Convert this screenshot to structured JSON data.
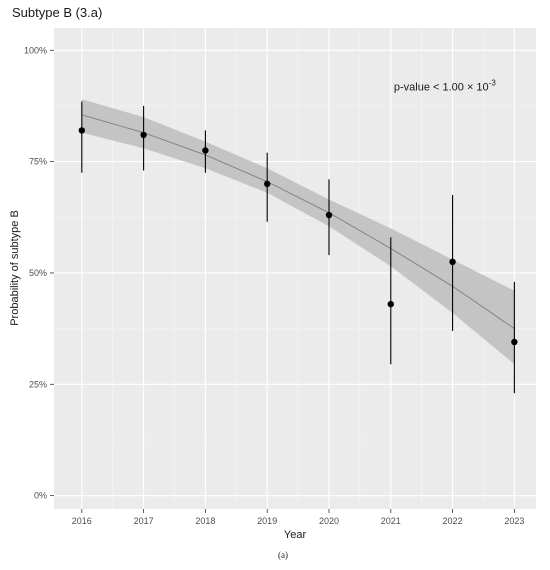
{
  "chart_data": {
    "type": "scatter",
    "title": "Subtype B (3.a)",
    "xlabel": "Year",
    "ylabel": "Probability of subtype B",
    "xlim": [
      2015.55,
      2023.35
    ],
    "ylim": [
      -0.03,
      1.05
    ],
    "x_ticks": [
      2016,
      2017,
      2018,
      2019,
      2020,
      2021,
      2022,
      2023
    ],
    "x_tick_labels": [
      "2016",
      "2017",
      "2018",
      "2019",
      "2020",
      "2021",
      "2022",
      "2023"
    ],
    "y_ticks": [
      0,
      0.25,
      0.5,
      0.75,
      1.0
    ],
    "y_tick_labels": [
      "0%",
      "25%",
      "50%",
      "75%",
      "100%"
    ],
    "grid": true,
    "background": "#ebebeb",
    "points": {
      "x": [
        2016,
        2017,
        2018,
        2019,
        2020,
        2021,
        2022,
        2023
      ],
      "y": [
        0.82,
        0.81,
        0.775,
        0.7,
        0.63,
        0.43,
        0.525,
        0.345
      ],
      "lower": [
        0.725,
        0.73,
        0.725,
        0.615,
        0.54,
        0.295,
        0.37,
        0.23
      ],
      "upper": [
        0.885,
        0.875,
        0.82,
        0.77,
        0.71,
        0.58,
        0.675,
        0.48
      ],
      "color": "#000000"
    },
    "fit": {
      "x": [
        2016,
        2017,
        2018,
        2019,
        2020,
        2021,
        2022,
        2023
      ],
      "y": [
        0.855,
        0.815,
        0.765,
        0.705,
        0.635,
        0.555,
        0.47,
        0.375
      ],
      "lower": [
        0.815,
        0.78,
        0.735,
        0.68,
        0.605,
        0.515,
        0.41,
        0.295
      ],
      "upper": [
        0.89,
        0.85,
        0.795,
        0.735,
        0.665,
        0.6,
        0.53,
        0.46
      ],
      "line_color": "#7f7f7f",
      "band_color": "#bdbdbd"
    },
    "annotation": {
      "text": "p-value < 1.00 × 10",
      "superscript": "-3",
      "x": 2021.05,
      "y": 0.91
    }
  },
  "caption": "(a)"
}
